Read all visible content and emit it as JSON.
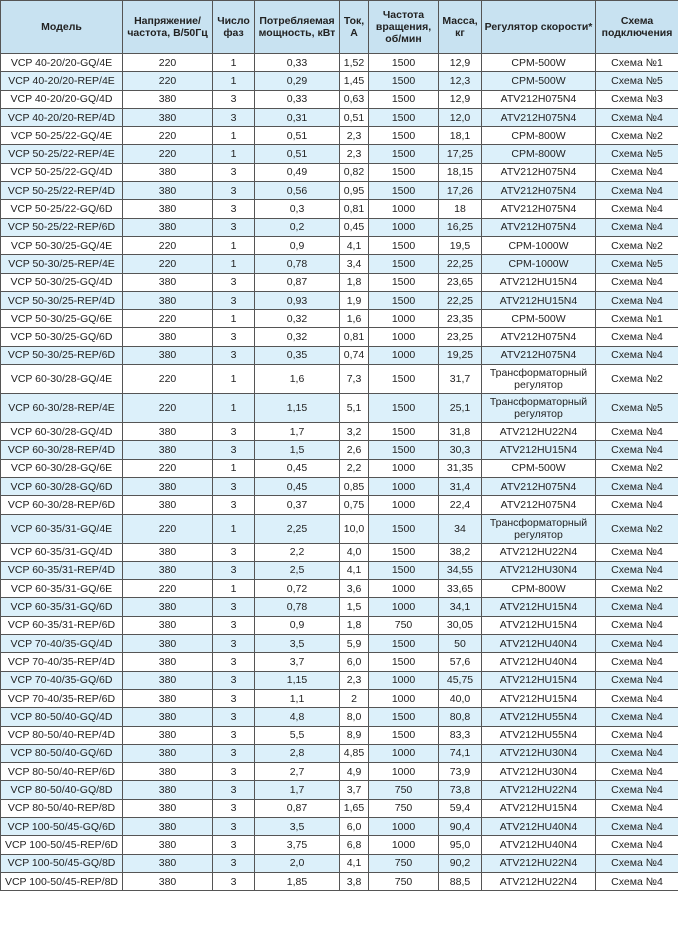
{
  "table": {
    "headers": [
      "Модель",
      "Напряжение/ частота, В/50Гц",
      "Число фаз",
      "Потребляемая мощность, кВт",
      "Ток, А",
      "Частота вращения, об/мин",
      "Масса, кг",
      "Регулятор скорости*",
      "Схема подключения"
    ],
    "colors": {
      "header_bg": "#c8e2f1",
      "row_shade": "#dcf0fa",
      "border": "#555555"
    },
    "rows": [
      {
        "shaded": false,
        "cells": [
          "VCP 40-20/20-GQ/4E",
          "220",
          "1",
          "0,33",
          "1,52",
          "1500",
          "12,9",
          "CPM-500W",
          "Схема №1"
        ]
      },
      {
        "shaded": true,
        "cells": [
          "VCP 40-20/20-REP/4E",
          "220",
          "1",
          "0,29",
          "1,45",
          "1500",
          "12,3",
          "CPM-500W",
          "Схема №5"
        ]
      },
      {
        "shaded": false,
        "cells": [
          "VCP 40-20/20-GQ/4D",
          "380",
          "3",
          "0,33",
          "0,63",
          "1500",
          "12,9",
          "ATV212H075N4",
          "Схема №3"
        ]
      },
      {
        "shaded": true,
        "cells": [
          "VCP 40-20/20-REP/4D",
          "380",
          "3",
          "0,31",
          "0,51",
          "1500",
          "12,0",
          "ATV212H075N4",
          "Схема №4"
        ]
      },
      {
        "shaded": false,
        "cells": [
          "VCP 50-25/22-GQ/4E",
          "220",
          "1",
          "0,51",
          "2,3",
          "1500",
          "18,1",
          "CPM-800W",
          "Схема №2"
        ]
      },
      {
        "shaded": true,
        "cells": [
          "VCP 50-25/22-REP/4E",
          "220",
          "1",
          "0,51",
          "2,3",
          "1500",
          "17,25",
          "CPM-800W",
          "Схема №5"
        ]
      },
      {
        "shaded": false,
        "cells": [
          "VCP 50-25/22-GQ/4D",
          "380",
          "3",
          "0,49",
          "0,82",
          "1500",
          "18,15",
          "ATV212H075N4",
          "Схема №4"
        ]
      },
      {
        "shaded": true,
        "cells": [
          "VCP 50-25/22-REP/4D",
          "380",
          "3",
          "0,56",
          "0,95",
          "1500",
          "17,26",
          "ATV212H075N4",
          "Схема №4"
        ]
      },
      {
        "shaded": false,
        "cells": [
          "VCP 50-25/22-GQ/6D",
          "380",
          "3",
          "0,3",
          "0,81",
          "1000",
          "18",
          "ATV212H075N4",
          "Схема №4"
        ]
      },
      {
        "shaded": true,
        "cells": [
          "VCP 50-25/22-REP/6D",
          "380",
          "3",
          "0,2",
          "0,45",
          "1000",
          "16,25",
          "ATV212H075N4",
          "Схема №4"
        ]
      },
      {
        "shaded": false,
        "cells": [
          "VCP 50-30/25-GQ/4E",
          "220",
          "1",
          "0,9",
          "4,1",
          "1500",
          "19,5",
          "CPM-1000W",
          "Схема №2"
        ]
      },
      {
        "shaded": true,
        "cells": [
          "VCP 50-30/25-REP/4E",
          "220",
          "1",
          "0,78",
          "3,4",
          "1500",
          "22,25",
          "CPM-1000W",
          "Схема №5"
        ]
      },
      {
        "shaded": false,
        "cells": [
          "VCP 50-30/25-GQ/4D",
          "380",
          "3",
          "0,87",
          "1,8",
          "1500",
          "23,65",
          "ATV212HU15N4",
          "Схема №4"
        ]
      },
      {
        "shaded": true,
        "cells": [
          "VCP 50-30/25-REP/4D",
          "380",
          "3",
          "0,93",
          "1,9",
          "1500",
          "22,25",
          "ATV212HU15N4",
          "Схема №4"
        ]
      },
      {
        "shaded": false,
        "cells": [
          "VCP 50-30/25-GQ/6E",
          "220",
          "1",
          "0,32",
          "1,6",
          "1000",
          "23,35",
          "CPM-500W",
          "Схема №1"
        ]
      },
      {
        "shaded": false,
        "cells": [
          "VCP 50-30/25-GQ/6D",
          "380",
          "3",
          "0,32",
          "0,81",
          "1000",
          "23,25",
          "ATV212H075N4",
          "Схема №4"
        ]
      },
      {
        "shaded": true,
        "cells": [
          "VCP 50-30/25-REP/6D",
          "380",
          "3",
          "0,35",
          "0,74",
          "1000",
          "19,25",
          "ATV212H075N4",
          "Схема №4"
        ]
      },
      {
        "shaded": false,
        "cells": [
          "VCP 60-30/28-GQ/4E",
          "220",
          "1",
          "1,6",
          "7,3",
          "1500",
          "31,7",
          "Трансформаторный регулятор",
          "Схема №2"
        ]
      },
      {
        "shaded": true,
        "cells": [
          "VCP 60-30/28-REP/4E",
          "220",
          "1",
          "1,15",
          "5,1",
          "1500",
          "25,1",
          "Трансформаторный регулятор",
          "Схема №5"
        ]
      },
      {
        "shaded": false,
        "cells": [
          "VCP 60-30/28-GQ/4D",
          "380",
          "3",
          "1,7",
          "3,2",
          "1500",
          "31,8",
          "ATV212HU22N4",
          "Схема №4"
        ]
      },
      {
        "shaded": true,
        "cells": [
          "VCP 60-30/28-REP/4D",
          "380",
          "3",
          "1,5",
          "2,6",
          "1500",
          "30,3",
          "ATV212HU15N4",
          "Схема №4"
        ]
      },
      {
        "shaded": false,
        "cells": [
          "VCP 60-30/28-GQ/6E",
          "220",
          "1",
          "0,45",
          "2,2",
          "1000",
          "31,35",
          "CPM-500W",
          "Схема №2"
        ]
      },
      {
        "shaded": true,
        "cells": [
          "VCP 60-30/28-GQ/6D",
          "380",
          "3",
          "0,45",
          "0,85",
          "1000",
          "31,4",
          "ATV212H075N4",
          "Схема №4"
        ]
      },
      {
        "shaded": false,
        "cells": [
          "VCP 60-30/28-REP/6D",
          "380",
          "3",
          "0,37",
          "0,75",
          "1000",
          "22,4",
          "ATV212H075N4",
          "Схема №4"
        ]
      },
      {
        "shaded": true,
        "cells": [
          "VCP 60-35/31-GQ/4E",
          "220",
          "1",
          "2,25",
          "10,0",
          "1500",
          "34",
          "Трансформаторный регулятор",
          "Схема №2"
        ]
      },
      {
        "shaded": false,
        "cells": [
          "VCP 60-35/31-GQ/4D",
          "380",
          "3",
          "2,2",
          "4,0",
          "1500",
          "38,2",
          "ATV212HU22N4",
          "Схема №4"
        ]
      },
      {
        "shaded": true,
        "cells": [
          "VCP 60-35/31-REP/4D",
          "380",
          "3",
          "2,5",
          "4,1",
          "1500",
          "34,55",
          "ATV212HU30N4",
          "Схема №4"
        ]
      },
      {
        "shaded": false,
        "cells": [
          "VCP 60-35/31-GQ/6E",
          "220",
          "1",
          "0,72",
          "3,6",
          "1000",
          "33,65",
          "CPM-800W",
          "Схема №2"
        ]
      },
      {
        "shaded": true,
        "cells": [
          "VCP 60-35/31-GQ/6D",
          "380",
          "3",
          "0,78",
          "1,5",
          "1000",
          "34,1",
          "ATV212HU15N4",
          "Схема №4"
        ]
      },
      {
        "shaded": false,
        "cells": [
          "VCP 60-35/31-REP/6D",
          "380",
          "3",
          "0,9",
          "1,8",
          "750",
          "30,05",
          "ATV212HU15N4",
          "Схема №4"
        ]
      },
      {
        "shaded": true,
        "cells": [
          "VCP 70-40/35-GQ/4D",
          "380",
          "3",
          "3,5",
          "5,9",
          "1500",
          "50",
          "ATV212HU40N4",
          "Схема №4"
        ]
      },
      {
        "shaded": false,
        "cells": [
          "VCP 70-40/35-REP/4D",
          "380",
          "3",
          "3,7",
          "6,0",
          "1500",
          "57,6",
          "ATV212HU40N4",
          "Схема №4"
        ]
      },
      {
        "shaded": true,
        "cells": [
          "VCP 70-40/35-GQ/6D",
          "380",
          "3",
          "1,15",
          "2,3",
          "1000",
          "45,75",
          "ATV212HU15N4",
          "Схема №4"
        ]
      },
      {
        "shaded": false,
        "cells": [
          "VCP 70-40/35-REP/6D",
          "380",
          "3",
          "1,1",
          "2",
          "1000",
          "40,0",
          "ATV212HU15N4",
          "Схема №4"
        ]
      },
      {
        "shaded": true,
        "cells": [
          "VCP 80-50/40-GQ/4D",
          "380",
          "3",
          "4,8",
          "8,0",
          "1500",
          "80,8",
          "ATV212HU55N4",
          "Схема №4"
        ]
      },
      {
        "shaded": false,
        "cells": [
          "VCP 80-50/40-REP/4D",
          "380",
          "3",
          "5,5",
          "8,9",
          "1500",
          "83,3",
          "ATV212HU55N4",
          "Схема №4"
        ]
      },
      {
        "shaded": true,
        "cells": [
          "VCP 80-50/40-GQ/6D",
          "380",
          "3",
          "2,8",
          "4,85",
          "1000",
          "74,1",
          "ATV212HU30N4",
          "Схема №4"
        ]
      },
      {
        "shaded": false,
        "cells": [
          "VCP 80-50/40-REP/6D",
          "380",
          "3",
          "2,7",
          "4,9",
          "1000",
          "73,9",
          "ATV212HU30N4",
          "Схема №4"
        ]
      },
      {
        "shaded": true,
        "cells": [
          "VCP 80-50/40-GQ/8D",
          "380",
          "3",
          "1,7",
          "3,7",
          "750",
          "73,8",
          "ATV212HU22N4",
          "Схема №4"
        ]
      },
      {
        "shaded": false,
        "cells": [
          "VCP 80-50/40-REP/8D",
          "380",
          "3",
          "0,87",
          "1,65",
          "750",
          "59,4",
          "ATV212HU15N4",
          "Схема №4"
        ]
      },
      {
        "shaded": true,
        "cells": [
          "VCP 100-50/45-GQ/6D",
          "380",
          "3",
          "3,5",
          "6,0",
          "1000",
          "90,4",
          "ATV212HU40N4",
          "Схема №4"
        ]
      },
      {
        "shaded": false,
        "cells": [
          "VCP 100-50/45-REP/6D",
          "380",
          "3",
          "3,75",
          "6,8",
          "1000",
          "95,0",
          "ATV212HU40N4",
          "Схема №4"
        ]
      },
      {
        "shaded": true,
        "cells": [
          "VCP 100-50/45-GQ/8D",
          "380",
          "3",
          "2,0",
          "4,1",
          "750",
          "90,2",
          "ATV212HU22N4",
          "Схема №4"
        ]
      },
      {
        "shaded": false,
        "cells": [
          "VCP 100-50/45-REP/8D",
          "380",
          "3",
          "1,85",
          "3,8",
          "750",
          "88,5",
          "ATV212HU22N4",
          "Схема №4"
        ]
      }
    ]
  }
}
